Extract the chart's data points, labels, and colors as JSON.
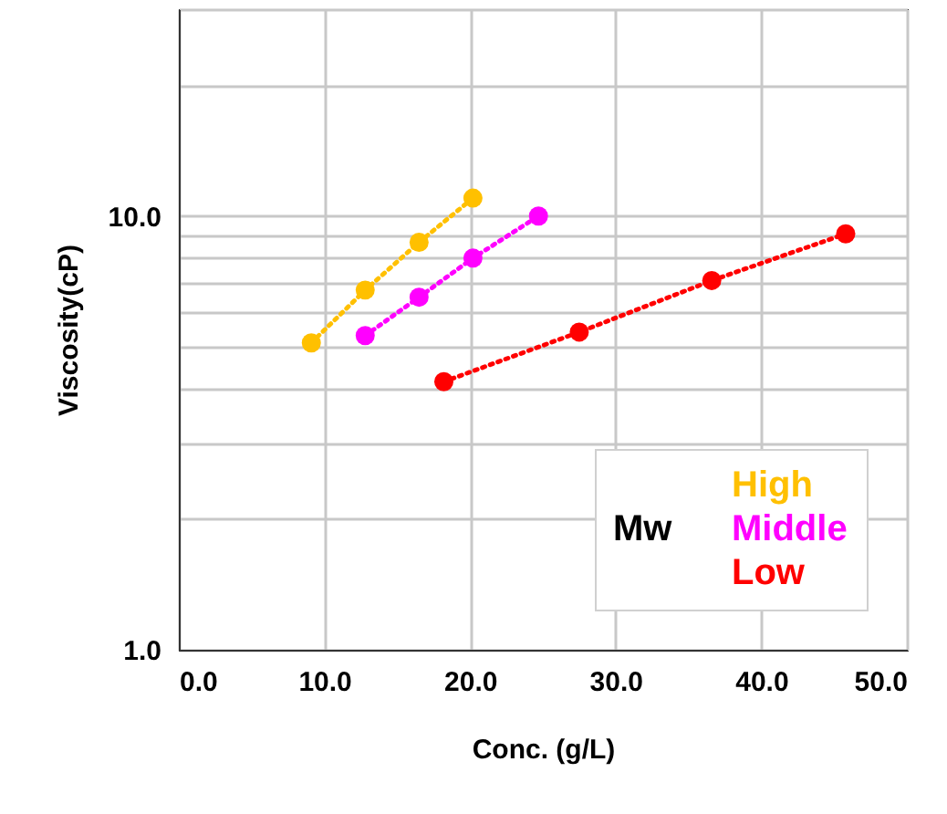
{
  "chart_data": {
    "type": "line",
    "xlabel": "Conc. (g/L)",
    "ylabel": "Viscosity(cP)",
    "legend_title": "Mw",
    "legend": "bottom right",
    "marker": "circle",
    "line_style": "dotted",
    "grid": true,
    "log": "y",
    "xlim": [
      0,
      50
    ],
    "xticks": [
      {
        "value": 0,
        "label": "0.0"
      },
      {
        "value": 10,
        "label": "10.0"
      },
      {
        "value": 20,
        "label": "20.0"
      },
      {
        "value": 30,
        "label": "30.0"
      },
      {
        "value": 40,
        "label": "40.0"
      },
      {
        "value": 50,
        "label": "50.0"
      }
    ],
    "ylim": [
      1,
      30
    ],
    "yticks": [
      {
        "value": 1,
        "label": "1.0"
      },
      {
        "value": 2,
        "label": null
      },
      {
        "value": 3,
        "label": null
      },
      {
        "value": 4,
        "label": null
      },
      {
        "value": 5,
        "label": null
      },
      {
        "value": 6,
        "label": null
      },
      {
        "value": 7,
        "label": null
      },
      {
        "value": 8,
        "label": null
      },
      {
        "value": 9,
        "label": null
      },
      {
        "value": 10,
        "label": "10.0"
      },
      {
        "value": 20,
        "label": null
      },
      {
        "value": 30,
        "label": null
      }
    ],
    "series": [
      {
        "name": "High",
        "color": "#ffc000",
        "x": [
          9.1,
          12.8,
          16.5,
          20.2
        ],
        "values": [
          5.1,
          6.75,
          8.7,
          11
        ]
      },
      {
        "name": "Middle",
        "color": "#ff00ff",
        "x": [
          12.8,
          16.5,
          20.2,
          24.7
        ],
        "values": [
          5.3,
          6.5,
          8.0,
          10
        ]
      },
      {
        "name": "Low",
        "color": "#ff0000",
        "x": [
          18.2,
          27.5,
          36.6,
          45.8
        ],
        "values": [
          4.15,
          5.4,
          7.1,
          9.1
        ]
      }
    ]
  }
}
